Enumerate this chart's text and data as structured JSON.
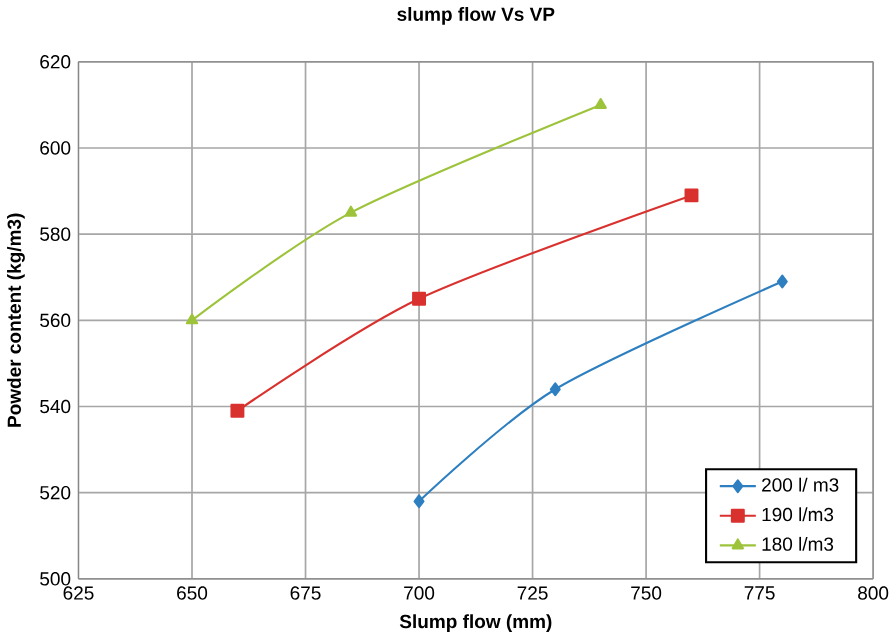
{
  "chart_data": {
    "type": "line",
    "title": "slump flow Vs VP",
    "xlabel": "Slump flow (mm)",
    "ylabel": "Powder content (kg/m3)",
    "xlim": [
      625,
      800
    ],
    "xticks": [
      625,
      650,
      675,
      700,
      725,
      750,
      775,
      800
    ],
    "ylim": [
      500,
      620
    ],
    "yticks": [
      500,
      520,
      540,
      560,
      580,
      600,
      620
    ],
    "grid": true,
    "legend": "bottom right",
    "series": [
      {
        "name": "200 l/ m3",
        "color": "#2e7fc0",
        "marker": "diamond",
        "x": [
          700,
          730,
          780
        ],
        "values": [
          518,
          544,
          569
        ]
      },
      {
        "name": "190 l/m3",
        "color": "#d9312e",
        "marker": "square",
        "x": [
          660,
          700,
          760
        ],
        "values": [
          539,
          565,
          589
        ]
      },
      {
        "name": "180 l/m3",
        "color": "#9dc33b",
        "marker": "triangle",
        "x": [
          650,
          685,
          740
        ],
        "values": [
          560,
          585,
          610
        ]
      }
    ]
  }
}
